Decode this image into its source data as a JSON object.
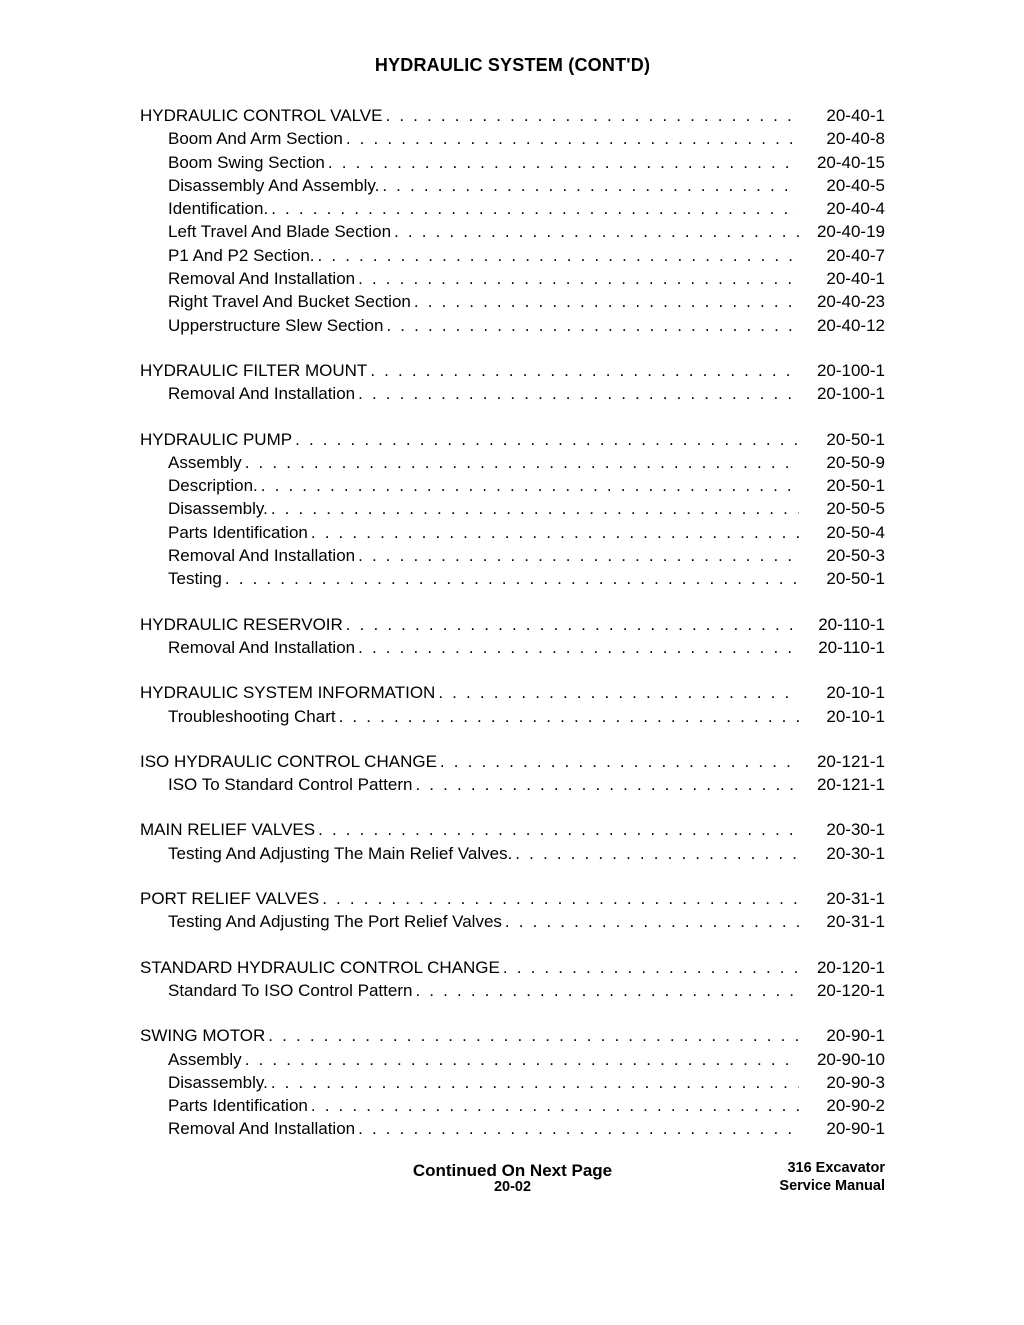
{
  "section_title": "HYDRAULIC SYSTEM (CONT'D)",
  "continued_label": "Continued On Next Page",
  "footer": {
    "page_number": "20-02",
    "right_line1": "316 Excavator",
    "right_line2": "Service Manual"
  },
  "groups": [
    {
      "heading": {
        "label": "HYDRAULIC CONTROL VALVE",
        "page": "20-40-1"
      },
      "items": [
        {
          "label": "Boom And Arm Section",
          "page": "20-40-8"
        },
        {
          "label": "Boom Swing Section",
          "page": "20-40-15"
        },
        {
          "label": "Disassembly And Assembly.",
          "page": "20-40-5"
        },
        {
          "label": "Identification.",
          "page": "20-40-4"
        },
        {
          "label": "Left Travel And Blade Section",
          "page": "20-40-19"
        },
        {
          "label": "P1 And P2 Section.",
          "page": "20-40-7"
        },
        {
          "label": "Removal And Installation",
          "page": "20-40-1"
        },
        {
          "label": "Right Travel And Bucket Section",
          "page": "20-40-23"
        },
        {
          "label": "Upperstructure Slew Section",
          "page": "20-40-12"
        }
      ]
    },
    {
      "heading": {
        "label": "HYDRAULIC FILTER MOUNT",
        "page": "20-100-1"
      },
      "items": [
        {
          "label": "Removal And Installation",
          "page": "20-100-1"
        }
      ]
    },
    {
      "heading": {
        "label": "HYDRAULIC PUMP",
        "page": "20-50-1"
      },
      "items": [
        {
          "label": "Assembly",
          "page": "20-50-9"
        },
        {
          "label": "Description.",
          "page": "20-50-1"
        },
        {
          "label": "Disassembly.",
          "page": "20-50-5"
        },
        {
          "label": "Parts Identification",
          "page": "20-50-4"
        },
        {
          "label": "Removal And Installation",
          "page": "20-50-3"
        },
        {
          "label": "Testing",
          "page": "20-50-1"
        }
      ]
    },
    {
      "heading": {
        "label": "HYDRAULIC RESERVOIR",
        "page": "20-110-1"
      },
      "items": [
        {
          "label": "Removal And Installation",
          "page": "20-110-1"
        }
      ]
    },
    {
      "heading": {
        "label": "HYDRAULIC SYSTEM INFORMATION",
        "page": "20-10-1"
      },
      "items": [
        {
          "label": "Troubleshooting Chart",
          "page": "20-10-1"
        }
      ]
    },
    {
      "heading": {
        "label": "ISO HYDRAULIC CONTROL CHANGE",
        "page": "20-121-1"
      },
      "items": [
        {
          "label": "ISO To Standard Control Pattern",
          "page": "20-121-1"
        }
      ]
    },
    {
      "heading": {
        "label": "MAIN RELIEF VALVES",
        "page": "20-30-1"
      },
      "items": [
        {
          "label": "Testing And Adjusting The Main Relief Valves.",
          "page": "20-30-1"
        }
      ]
    },
    {
      "heading": {
        "label": "PORT RELIEF VALVES",
        "page": "20-31-1"
      },
      "items": [
        {
          "label": "Testing And Adjusting The Port Relief Valves",
          "page": "20-31-1"
        }
      ]
    },
    {
      "heading": {
        "label": "STANDARD HYDRAULIC CONTROL CHANGE",
        "page": "20-120-1"
      },
      "items": [
        {
          "label": "Standard To ISO Control Pattern",
          "page": "20-120-1"
        }
      ]
    },
    {
      "heading": {
        "label": "SWING MOTOR",
        "page": "20-90-1"
      },
      "items": [
        {
          "label": "Assembly",
          "page": "20-90-10"
        },
        {
          "label": "Disassembly.",
          "page": "20-90-3"
        },
        {
          "label": "Parts Identification",
          "page": "20-90-2"
        },
        {
          "label": "Removal And Installation",
          "page": "20-90-1"
        }
      ]
    }
  ]
}
